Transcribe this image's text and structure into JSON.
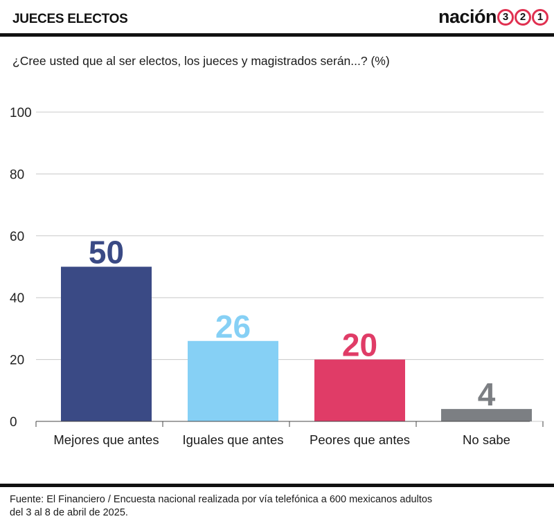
{
  "header": {
    "title": "JUECES ELECTOS",
    "brand_word": "nación",
    "brand_digits": [
      "3",
      "2",
      "1"
    ]
  },
  "question": "¿Cree usted que al ser electos, los jueces y magistrados serán...? (%)",
  "source": {
    "line1": "Fuente: El Financiero / Encuesta nacional realizada por vía telefónica a 600 mexicanos adultos",
    "line2": "del 3 al 8 de abril de 2025."
  },
  "colors": {
    "brand_accent": "#e03050",
    "gridline": "#c8c8c8"
  },
  "chart_data": {
    "type": "bar",
    "title": "¿Cree usted que al ser electos, los jueces y magistrados serán...? (%)",
    "categories": [
      "Mejores que antes",
      "Iguales que antes",
      "Peores que antes",
      "No sabe"
    ],
    "values": [
      50,
      26,
      20,
      4
    ],
    "value_labels": [
      "50",
      "26",
      "20",
      "4"
    ],
    "colors": [
      "#3a4a85",
      "#86d0f5",
      "#e03c67",
      "#7c7f83"
    ],
    "ylim": [
      0,
      100
    ],
    "yticks": [
      0,
      20,
      40,
      60,
      80,
      100
    ],
    "ytick_labels": [
      "0",
      "20",
      "40",
      "60",
      "80",
      "100"
    ],
    "xlabel": "",
    "ylabel": "",
    "grid": true,
    "legend": false
  }
}
